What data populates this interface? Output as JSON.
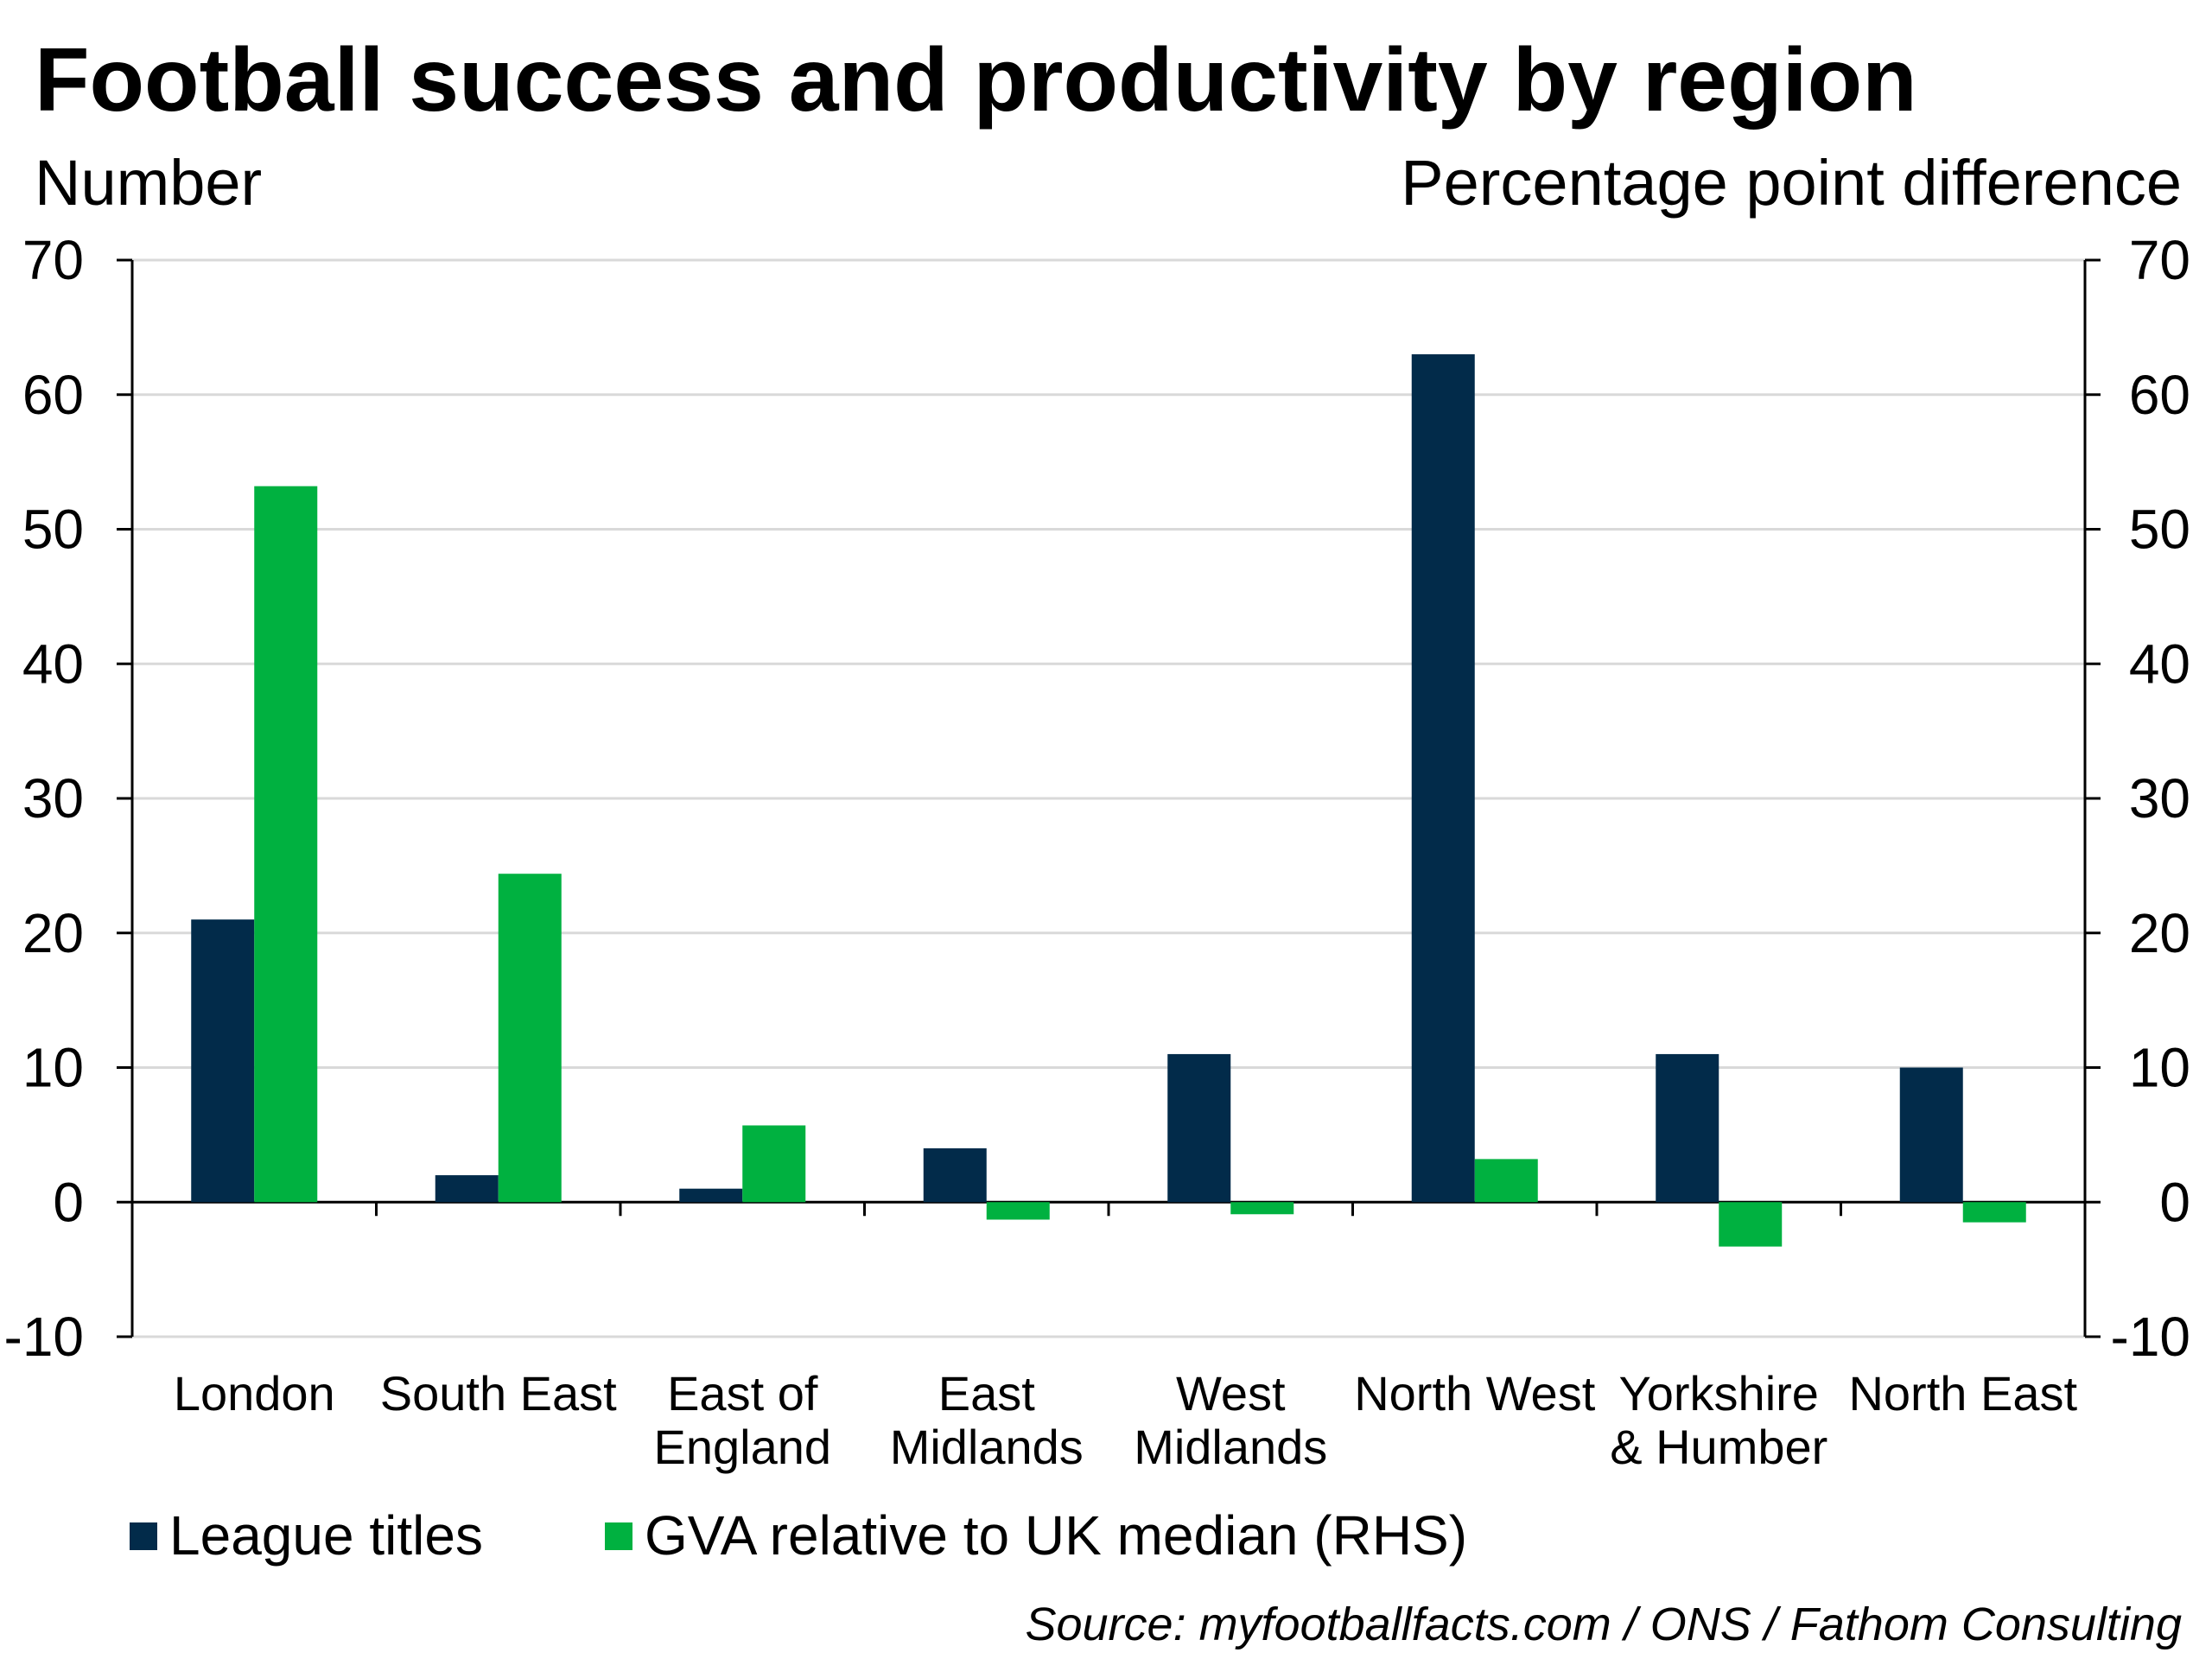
{
  "chart_data": {
    "type": "bar",
    "title": "Football success and productivity by region",
    "ylabel_left": "Number",
    "ylabel_right": "Percentage point difference",
    "categories": [
      [
        "London"
      ],
      [
        "South East"
      ],
      [
        "East of",
        "England"
      ],
      [
        "East",
        "Midlands"
      ],
      [
        "West",
        "Midlands"
      ],
      [
        "North West"
      ],
      [
        "Yorkshire",
        "& Humber"
      ],
      [
        "North East"
      ]
    ],
    "series": [
      {
        "name": "League titles",
        "axis": "left",
        "color": "#022b4a",
        "values": [
          21,
          2,
          1,
          4,
          11,
          63,
          11,
          10
        ]
      },
      {
        "name": "GVA relative to UK median (RHS)",
        "axis": "right",
        "color": "#00b140",
        "values": [
          53.2,
          24.4,
          5.7,
          -1.3,
          -0.9,
          3.2,
          -3.3,
          -1.5
        ]
      }
    ],
    "ylim_left": [
      -10,
      70
    ],
    "ylim_right": [
      -10,
      70
    ],
    "yticks_left": [
      "70",
      "60",
      "50",
      "40",
      "30",
      "20",
      "10",
      "0",
      "-10"
    ],
    "yticks_right": [
      "70",
      "60",
      "50",
      "40",
      "30",
      "20",
      "10",
      "0",
      "-10"
    ],
    "grid": true,
    "legend_position": "bottom-left",
    "source": "Source: myfootballfacts.com / ONS / Fathom Consulting"
  }
}
